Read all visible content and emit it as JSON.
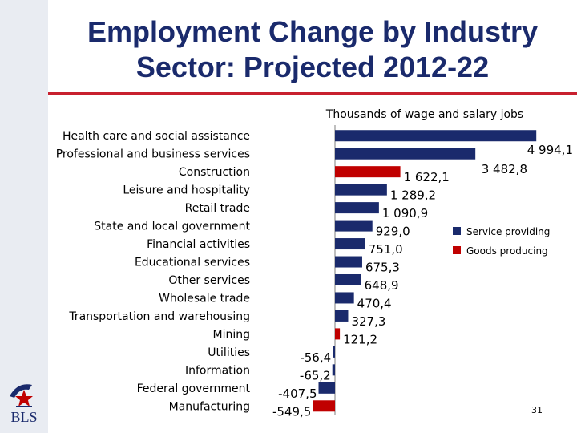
{
  "slide": {
    "title_line1": "Employment Change by Industry",
    "title_line2": "Sector: Projected 2012-22",
    "logo_text": "BLS",
    "page_number": "31"
  },
  "colors": {
    "service": "#1a2a6c",
    "goods": "#c00000",
    "accent_rule": "#c8202f"
  },
  "chart_data": {
    "type": "bar",
    "orientation": "horizontal",
    "title": "Thousands of wage and salary jobs",
    "categories": [
      "Health care and social assistance",
      "Professional and business services",
      "Construction",
      "Leisure and hospitality",
      "Retail trade",
      "State and local government",
      "Financial activities",
      "Educational services",
      "Other services",
      "Wholesale trade",
      "Transportation and warehousing",
      "Mining",
      "Utilities",
      "Information",
      "Federal government",
      "Manufacturing"
    ],
    "values": [
      4994.1,
      3482.8,
      1622.1,
      1289.2,
      1090.9,
      929.0,
      751.0,
      675.3,
      648.9,
      470.4,
      327.3,
      121.2,
      -56.4,
      -65.2,
      -407.5,
      -549.5
    ],
    "labels": [
      "4 994,1",
      "3 482,8",
      "1 622,1",
      "1 289,2",
      "1 090,9",
      "929,0",
      "751,0",
      "675,3",
      "648,9",
      "470,4",
      "327,3",
      "121,2",
      "-56,4",
      "-65,2",
      "-407,5",
      "-549,5"
    ],
    "groups": [
      "service",
      "service",
      "goods",
      "service",
      "service",
      "service",
      "service",
      "service",
      "service",
      "service",
      "service",
      "goods",
      "service",
      "service",
      "service",
      "goods"
    ],
    "legend": [
      {
        "key": "service",
        "label": "Service providing"
      },
      {
        "key": "goods",
        "label": "Goods producing"
      }
    ],
    "xlim": [
      -549.5,
      4994.1
    ]
  }
}
